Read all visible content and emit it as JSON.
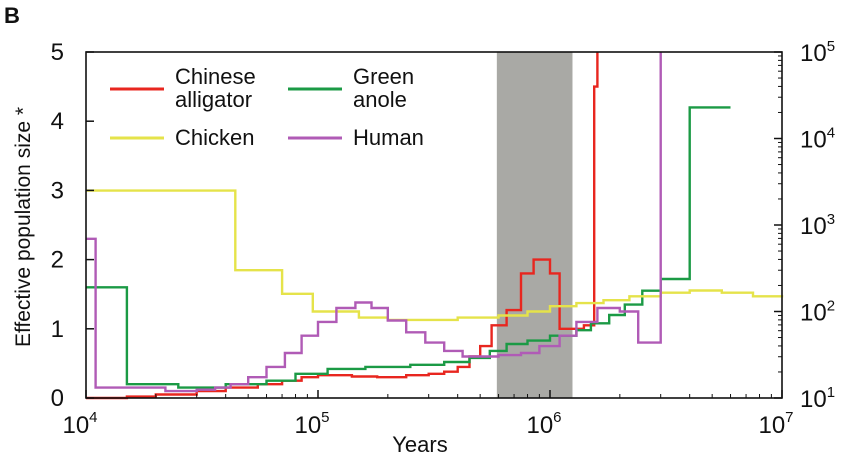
{
  "chart_data": {
    "type": "line",
    "panel_label": "B",
    "title": "",
    "xlabel": "Years",
    "ylabel": "Effective population size *",
    "x_scale": "log",
    "xlim": [
      10000,
      10000000
    ],
    "ylim": [
      0,
      5
    ],
    "x_tick_labels": [
      {
        "base": "10",
        "exp": "4",
        "value": 10000
      },
      {
        "base": "10",
        "exp": "5",
        "value": 100000
      },
      {
        "base": "10",
        "exp": "6",
        "value": 1000000
      },
      {
        "base": "10",
        "exp": "7",
        "value": 10000000
      }
    ],
    "y_ticks": [
      "0",
      "1",
      "2",
      "3",
      "4",
      "5"
    ],
    "y2_scale": "log",
    "y2lim": [
      10,
      100000
    ],
    "y2_tick_labels": [
      {
        "base": "10",
        "exp": "1",
        "value": 10
      },
      {
        "base": "10",
        "exp": "2",
        "value": 100
      },
      {
        "base": "10",
        "exp": "3",
        "value": 1000
      },
      {
        "base": "10",
        "exp": "4",
        "value": 10000
      },
      {
        "base": "10",
        "exp": "5",
        "value": 100000
      }
    ],
    "shaded_region": {
      "x": [
        590000,
        1250000
      ],
      "color": "#a9a9a5"
    },
    "grid": false,
    "legend_position": "top-left",
    "series": [
      {
        "name": "Chinese alligator",
        "color": "#e8261f",
        "axis": "left",
        "x": [
          10000,
          15000,
          20000,
          30000,
          40000,
          55000,
          70000,
          85000,
          100000,
          140000,
          180000,
          240000,
          300000,
          350000,
          400000,
          450000,
          500000,
          560000,
          650000,
          750000,
          850000,
          1000000,
          1100000,
          1250000,
          1400000,
          1550000,
          1600000
        ],
        "y": [
          0,
          0.02,
          0.05,
          0.1,
          0.15,
          0.2,
          0.25,
          0.3,
          0.33,
          0.31,
          0.3,
          0.33,
          0.35,
          0.38,
          0.45,
          0.6,
          0.75,
          1.05,
          1.27,
          1.8,
          2.0,
          1.8,
          1.0,
          1.0,
          1.05,
          4.5,
          5.0
        ]
      },
      {
        "name": "Green anole",
        "color": "#1b9a45",
        "axis": "left",
        "x": [
          10000,
          15000,
          25000,
          40000,
          60000,
          80000,
          110000,
          160000,
          250000,
          350000,
          450000,
          550000,
          650000,
          800000,
          1000000,
          1300000,
          1500000,
          1800000,
          2100000,
          2500000,
          3000000,
          4000000,
          6000000
        ],
        "y": [
          1.6,
          0.2,
          0.15,
          0.2,
          0.25,
          0.35,
          0.42,
          0.45,
          0.48,
          0.52,
          0.58,
          0.68,
          0.78,
          0.83,
          0.9,
          0.98,
          1.08,
          1.2,
          1.35,
          1.55,
          1.72,
          4.2,
          4.2
        ]
      },
      {
        "name": "Chicken",
        "color": "#e5e34a",
        "axis": "right",
        "x": [
          10000,
          44000,
          70000,
          95000,
          150000,
          200000,
          280000,
          400000,
          600000,
          800000,
          1000000,
          1300000,
          1700000,
          2200000,
          3000000,
          4000000,
          5500000,
          7500000,
          10000000
        ],
        "y": [
          2500,
          300,
          160,
          100,
          85,
          80,
          80,
          85,
          90,
          100,
          115,
          125,
          135,
          150,
          165,
          175,
          165,
          150,
          145
        ]
      },
      {
        "name": "Human",
        "color": "#b05bb6",
        "axis": "left",
        "x": [
          10000,
          11000,
          16000,
          22000,
          30000,
          36000,
          42000,
          50000,
          60000,
          72000,
          85000,
          100000,
          120000,
          145000,
          170000,
          200000,
          240000,
          290000,
          350000,
          420000,
          500000,
          600000,
          750000,
          900000,
          1100000,
          1300000,
          1600000,
          2000000,
          2400000,
          2900000,
          3000000
        ],
        "y": [
          2.3,
          0.15,
          0.15,
          0.1,
          0.12,
          0.15,
          0.2,
          0.3,
          0.45,
          0.65,
          0.9,
          1.1,
          1.3,
          1.38,
          1.3,
          1.12,
          0.95,
          0.8,
          0.68,
          0.6,
          0.6,
          0.62,
          0.65,
          0.75,
          0.9,
          1.1,
          1.3,
          1.25,
          0.8,
          0.8,
          5.0
        ]
      }
    ]
  }
}
